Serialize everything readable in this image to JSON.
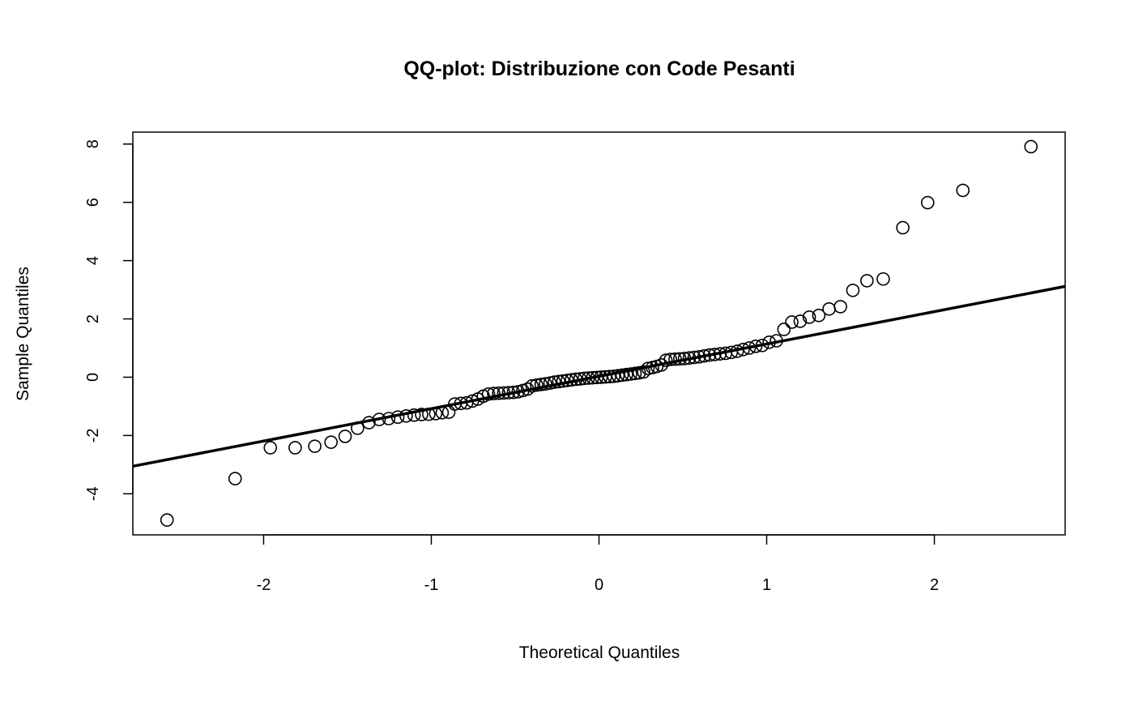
{
  "chart_data": {
    "type": "scatter",
    "title": "QQ-plot: Distribuzione con Code Pesanti",
    "xlabel": "Theoretical Quantiles",
    "ylabel": "Sample Quantiles",
    "xlim": [
      -2.78,
      2.78
    ],
    "ylim": [
      -5.41,
      8.41
    ],
    "xticks": [
      -2,
      -1,
      0,
      1,
      2
    ],
    "xtick_labels": [
      "-2",
      "-1",
      "0",
      "1",
      "2"
    ],
    "yticks": [
      -4,
      -2,
      0,
      2,
      4,
      6,
      8
    ],
    "ytick_labels": [
      "-4",
      "-2",
      "0",
      "2",
      "4",
      "6",
      "8"
    ],
    "grid": false,
    "x_upper_half": [
      0.0125,
      0.038,
      0.063,
      0.088,
      0.113,
      0.138,
      0.164,
      0.189,
      0.215,
      0.24,
      0.266,
      0.292,
      0.319,
      0.345,
      0.372,
      0.399,
      0.426,
      0.454,
      0.482,
      0.51,
      0.539,
      0.568,
      0.598,
      0.628,
      0.659,
      0.69,
      0.722,
      0.755,
      0.789,
      0.824,
      0.86,
      0.896,
      0.935,
      0.974,
      1.015,
      1.058,
      1.103,
      1.15,
      1.2,
      1.254,
      1.311,
      1.372,
      1.44,
      1.514,
      1.598,
      1.695,
      1.812,
      1.96,
      2.17,
      2.576
    ],
    "y_lower_half_desc": [
      -0.01,
      -0.02,
      -0.03,
      -0.04,
      -0.06,
      -0.07,
      -0.09,
      -0.11,
      -0.13,
      -0.15,
      -0.17,
      -0.2,
      -0.23,
      -0.25,
      -0.27,
      -0.3,
      -0.41,
      -0.46,
      -0.5,
      -0.52,
      -0.53,
      -0.54,
      -0.55,
      -0.56,
      -0.58,
      -0.65,
      -0.75,
      -0.82,
      -0.88,
      -0.9,
      -0.92,
      -1.2,
      -1.22,
      -1.25,
      -1.27,
      -1.28,
      -1.3,
      -1.33,
      -1.37,
      -1.42,
      -1.45,
      -1.56,
      -1.75,
      -2.03,
      -2.23,
      -2.37,
      -2.42,
      -2.42,
      -3.48,
      -4.9
    ],
    "y_upper_half": [
      0.0,
      0.01,
      0.02,
      0.03,
      0.05,
      0.07,
      0.09,
      0.11,
      0.13,
      0.15,
      0.18,
      0.3,
      0.33,
      0.37,
      0.42,
      0.58,
      0.61,
      0.62,
      0.63,
      0.64,
      0.66,
      0.68,
      0.7,
      0.73,
      0.76,
      0.78,
      0.8,
      0.82,
      0.85,
      0.89,
      0.95,
      1.0,
      1.06,
      1.09,
      1.2,
      1.25,
      1.64,
      1.89,
      1.92,
      2.06,
      2.12,
      2.34,
      2.42,
      2.98,
      3.31,
      3.37,
      5.13,
      5.99,
      6.41,
      7.91
    ],
    "qqline": {
      "intercept": 0.03,
      "slope": 1.11
    }
  }
}
